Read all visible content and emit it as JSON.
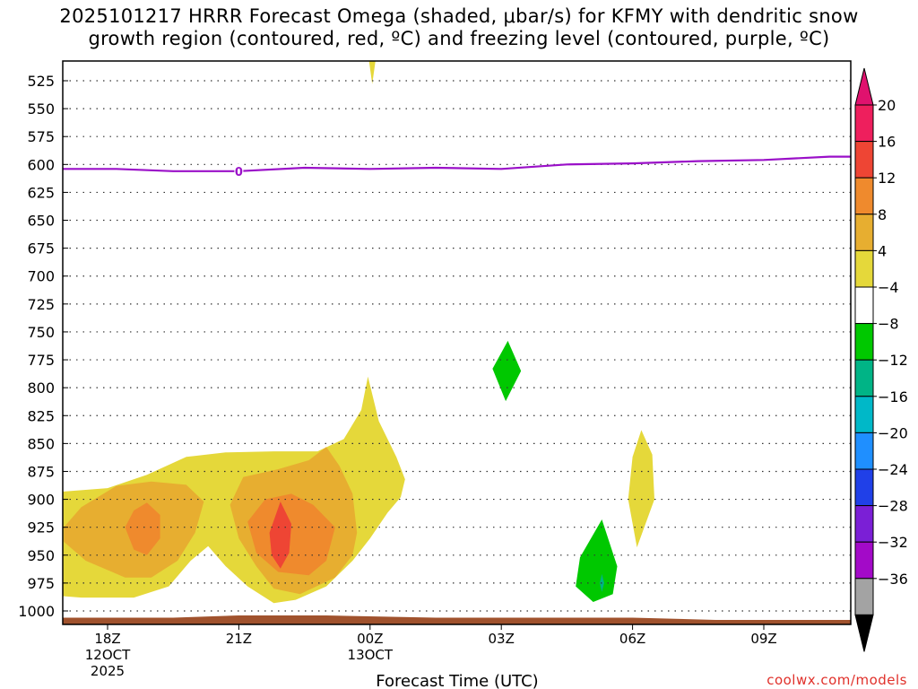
{
  "chart_data": {
    "type": "heatmap",
    "title_line1": "2025101217 HRRR Forecast Omega (shaded, μbar/s) for KFMY with dendritic snow",
    "title_line2": "growth region (contoured, red, ºC) and freezing level (contoured, purple, ºC)",
    "xlabel": "Forecast Time (UTC)",
    "ylabel": "",
    "y_axis": {
      "units": "mb",
      "levels": [
        "525",
        "550",
        "575",
        "600",
        "625",
        "650",
        "675",
        "700",
        "725",
        "750",
        "775",
        "800",
        "825",
        "850",
        "875",
        "900",
        "925",
        "950",
        "975",
        "1000"
      ]
    },
    "x_axis": {
      "range_hours": [
        -1,
        11
      ],
      "ticks": [
        {
          "hour": 0,
          "label": "18Z",
          "date": "12OCT",
          "year": "2025"
        },
        {
          "hour": 3,
          "label": "21Z",
          "date": "",
          "year": ""
        },
        {
          "hour": 6,
          "label": "00Z",
          "date": "13OCT",
          "year": ""
        },
        {
          "hour": 9,
          "label": "03Z",
          "date": "",
          "year": ""
        },
        {
          "hour": 12,
          "label": "06Z",
          "date": "",
          "year": ""
        },
        {
          "hour": 15,
          "label": "09Z",
          "date": "",
          "year": ""
        }
      ]
    },
    "colorbar": {
      "labels": [
        "20",
        "16",
        "12",
        "8",
        "4",
        "−4",
        "−8",
        "−12",
        "−16",
        "−20",
        "−24",
        "−28",
        "−32",
        "−36"
      ],
      "colors": [
        "#ee1f5d",
        "#ee4534",
        "#ef8a2d",
        "#e7ae30",
        "#e5d83a",
        "#ffffff",
        "#00c800",
        "#00b486",
        "#00b8c8",
        "#1f8fff",
        "#2040e8",
        "#7b1fd6",
        "#a30ac8",
        "#a3a3a3"
      ],
      "top_arrow_color": "#e0126e",
      "bottom_arrow_color": "#000000"
    },
    "freezing_level": {
      "label": "0",
      "color": "#9a10c8",
      "points": [
        [
          -3.0,
          606
        ],
        [
          -1.5,
          604
        ],
        [
          0.2,
          604
        ],
        [
          1.5,
          606
        ],
        [
          3.0,
          606
        ],
        [
          4.5,
          603
        ],
        [
          6.0,
          604
        ],
        [
          7.5,
          603
        ],
        [
          9.0,
          604
        ],
        [
          10.5,
          600
        ],
        [
          12.0,
          599
        ],
        [
          13.5,
          597
        ],
        [
          15.0,
          596
        ],
        [
          16.5,
          593
        ],
        [
          17.9,
          593
        ]
      ]
    },
    "omega_regions": [
      {
        "name": "omega-pos-4-8-west",
        "color": "#e5d83a",
        "points": [
          [
            -3.1,
            925
          ],
          [
            -2.8,
            906
          ],
          [
            -2.0,
            898
          ],
          [
            -1.0,
            893
          ],
          [
            0.0,
            890
          ],
          [
            0.9,
            878
          ],
          [
            1.8,
            862
          ],
          [
            2.7,
            858
          ],
          [
            3.8,
            857
          ],
          [
            4.8,
            857
          ],
          [
            5.4,
            846
          ],
          [
            5.8,
            820
          ],
          [
            5.95,
            790
          ],
          [
            6.2,
            830
          ],
          [
            6.6,
            862
          ],
          [
            6.8,
            882
          ],
          [
            6.7,
            898
          ],
          [
            6.4,
            912
          ],
          [
            6.0,
            935
          ],
          [
            5.6,
            955
          ],
          [
            5.0,
            978
          ],
          [
            4.3,
            990
          ],
          [
            3.8,
            993
          ],
          [
            3.2,
            978
          ],
          [
            2.7,
            960
          ],
          [
            2.3,
            942
          ],
          [
            1.9,
            955
          ],
          [
            1.4,
            978
          ],
          [
            0.6,
            988
          ],
          [
            -0.6,
            988
          ],
          [
            -1.9,
            984
          ],
          [
            -2.8,
            970
          ]
        ]
      },
      {
        "name": "omega-pos-8-12-west",
        "color": "#e7ae30",
        "points": [
          [
            -1.0,
            925
          ],
          [
            -0.6,
            907
          ],
          [
            0.2,
            888
          ],
          [
            1.0,
            884
          ],
          [
            1.8,
            887
          ],
          [
            2.2,
            902
          ],
          [
            2.0,
            930
          ],
          [
            1.6,
            955
          ],
          [
            1.0,
            970
          ],
          [
            0.4,
            970
          ],
          [
            -0.5,
            955
          ],
          [
            -1.0,
            938
          ]
        ]
      },
      {
        "name": "omega-pos-12-16-west",
        "color": "#ef8a2d",
        "points": [
          [
            0.4,
            925
          ],
          [
            0.6,
            910
          ],
          [
            0.9,
            903
          ],
          [
            1.2,
            914
          ],
          [
            1.2,
            935
          ],
          [
            0.9,
            950
          ],
          [
            0.6,
            945
          ]
        ]
      },
      {
        "name": "omega-pos-8-12-east",
        "color": "#e7ae30",
        "points": [
          [
            2.8,
            905
          ],
          [
            3.1,
            880
          ],
          [
            3.9,
            873
          ],
          [
            4.6,
            865
          ],
          [
            5.0,
            853
          ],
          [
            5.3,
            870
          ],
          [
            5.6,
            895
          ],
          [
            5.7,
            930
          ],
          [
            5.6,
            950
          ],
          [
            5.2,
            970
          ],
          [
            4.4,
            985
          ],
          [
            3.8,
            980
          ],
          [
            3.4,
            960
          ],
          [
            3.0,
            935
          ]
        ]
      },
      {
        "name": "omega-pos-12-16-east",
        "color": "#ef8a2d",
        "points": [
          [
            3.2,
            920
          ],
          [
            3.6,
            900
          ],
          [
            4.2,
            895
          ],
          [
            4.7,
            905
          ],
          [
            5.2,
            925
          ],
          [
            5.0,
            955
          ],
          [
            4.6,
            968
          ],
          [
            3.9,
            965
          ],
          [
            3.4,
            948
          ]
        ]
      },
      {
        "name": "omega-pos-16-20-east",
        "color": "#ee4534",
        "points": [
          [
            3.7,
            930
          ],
          [
            3.95,
            902
          ],
          [
            4.2,
            922
          ],
          [
            4.15,
            948
          ],
          [
            3.95,
            962
          ],
          [
            3.75,
            950
          ]
        ]
      },
      {
        "name": "omega-pos-4-8-top",
        "color": "#e5d83a",
        "points": [
          [
            5.95,
            500
          ],
          [
            6.15,
            500
          ],
          [
            6.05,
            528
          ]
        ]
      },
      {
        "name": "omega-neg-west",
        "color": "#00c800",
        "points": [
          [
            8.8,
            783
          ],
          [
            9.15,
            758
          ],
          [
            9.45,
            785
          ],
          [
            9.1,
            812
          ]
        ]
      },
      {
        "name": "omega-pos-4-8-east",
        "color": "#e5d83a",
        "points": [
          [
            12.0,
            862
          ],
          [
            12.2,
            838
          ],
          [
            12.45,
            860
          ],
          [
            12.5,
            900
          ],
          [
            12.1,
            943
          ],
          [
            11.9,
            900
          ]
        ]
      },
      {
        "name": "omega-neg-south",
        "color": "#00c800",
        "points": [
          [
            10.8,
            952
          ],
          [
            11.3,
            918
          ],
          [
            11.65,
            960
          ],
          [
            11.55,
            985
          ],
          [
            11.1,
            992
          ],
          [
            10.7,
            978
          ]
        ]
      },
      {
        "name": "omega-neg-south-core",
        "color": "#00b486",
        "points": [
          [
            11.25,
            975
          ],
          [
            11.3,
            967
          ],
          [
            11.35,
            975
          ],
          [
            11.3,
            983
          ]
        ]
      },
      {
        "name": "omega-neg-east",
        "color": "#00c800",
        "points": [
          [
            17.3,
            768
          ],
          [
            17.9,
            730
          ],
          [
            17.95,
            805
          ],
          [
            17.3,
            790
          ]
        ]
      }
    ],
    "terrain": {
      "color": "#a0522d",
      "points": [
        [
          -3.1,
          1006
        ],
        [
          1.5,
          1006
        ],
        [
          3.0,
          1004
        ],
        [
          5.0,
          1004
        ],
        [
          7.5,
          1006
        ],
        [
          12.0,
          1006
        ],
        [
          13.9,
          1008
        ],
        [
          17.95,
          1008
        ]
      ]
    }
  },
  "credit": "coolwx.com/models"
}
